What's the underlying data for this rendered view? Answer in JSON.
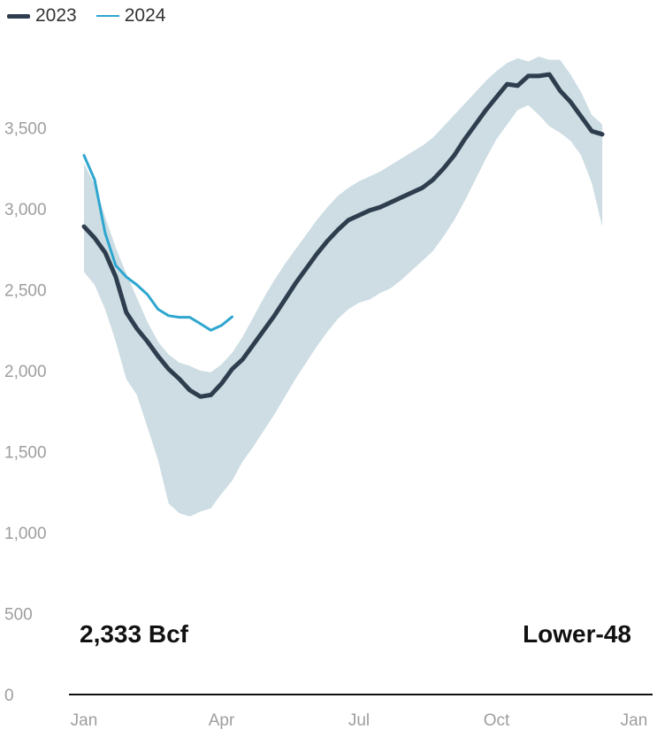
{
  "chart_data": {
    "type": "line",
    "title": "",
    "xlabel": "",
    "ylabel": "",
    "ylim": [
      0,
      3900
    ],
    "yticks": [
      "0",
      "500",
      "1,000",
      "1,500",
      "2,000",
      "2,500",
      "3,000",
      "3,500"
    ],
    "xticks": [
      "Jan",
      "Apr",
      "Jul",
      "Oct",
      "Jan"
    ],
    "legend": {
      "position": "top-left"
    },
    "grid": false,
    "series": [
      {
        "name": "2023",
        "color": "#2f3e4e",
        "week": [
          0,
          1,
          2,
          3,
          4,
          5,
          6,
          7,
          8,
          9,
          10,
          11,
          12,
          13,
          14,
          15,
          16,
          17,
          18,
          19,
          20,
          21,
          22,
          23,
          24,
          25,
          26,
          27,
          28,
          29,
          30,
          31,
          32,
          33,
          34,
          35,
          36,
          37,
          38,
          39,
          40,
          41,
          42,
          43,
          44,
          45,
          46,
          47,
          48,
          49,
          50,
          51,
          52
        ],
        "values": [
          2890,
          2820,
          2730,
          2580,
          2360,
          2260,
          2180,
          2090,
          2010,
          1950,
          1880,
          1840,
          1850,
          1920,
          2010,
          2070,
          2160,
          2250,
          2340,
          2440,
          2540,
          2630,
          2720,
          2800,
          2870,
          2930,
          2960,
          2990,
          3010,
          3040,
          3070,
          3100,
          3130,
          3180,
          3250,
          3330,
          3430,
          3520,
          3610,
          3690,
          3770,
          3760,
          3820,
          3820,
          3830,
          3730,
          3660,
          3570,
          3480,
          3460,
          null,
          null,
          null
        ]
      },
      {
        "name": "2024",
        "color": "#2ea6cf",
        "week": [
          0,
          1,
          2,
          3,
          4,
          5,
          6,
          7,
          8,
          9,
          10,
          11,
          12,
          13,
          14
        ],
        "values": [
          3330,
          3180,
          2850,
          2650,
          2580,
          2530,
          2470,
          2380,
          2340,
          2330,
          2330,
          2290,
          2250,
          2280,
          2333
        ]
      }
    ],
    "range_band": {
      "color": "#cddde3",
      "upper": [
        3280,
        3150,
        2950,
        2760,
        2600,
        2450,
        2300,
        2180,
        2100,
        2050,
        2030,
        2000,
        1990,
        2040,
        2110,
        2210,
        2330,
        2450,
        2560,
        2660,
        2750,
        2840,
        2930,
        3010,
        3080,
        3130,
        3170,
        3200,
        3230,
        3270,
        3310,
        3350,
        3390,
        3440,
        3510,
        3580,
        3650,
        3720,
        3790,
        3850,
        3900,
        3930,
        3910,
        3940,
        3920,
        3920,
        3830,
        3720,
        3580,
        3520
      ],
      "lower": [
        2610,
        2530,
        2380,
        2180,
        1950,
        1850,
        1650,
        1450,
        1180,
        1120,
        1100,
        1130,
        1150,
        1240,
        1320,
        1440,
        1530,
        1630,
        1730,
        1840,
        1950,
        2050,
        2150,
        2240,
        2320,
        2380,
        2420,
        2440,
        2480,
        2510,
        2560,
        2620,
        2680,
        2740,
        2830,
        2930,
        3050,
        3180,
        3310,
        3430,
        3520,
        3610,
        3640,
        3580,
        3510,
        3470,
        3420,
        3330,
        3160,
        2890
      ]
    },
    "annotations": [
      {
        "text": "2,333 Bcf",
        "position": "bottom-left"
      },
      {
        "text": "Lower-48",
        "position": "bottom-right"
      }
    ]
  }
}
